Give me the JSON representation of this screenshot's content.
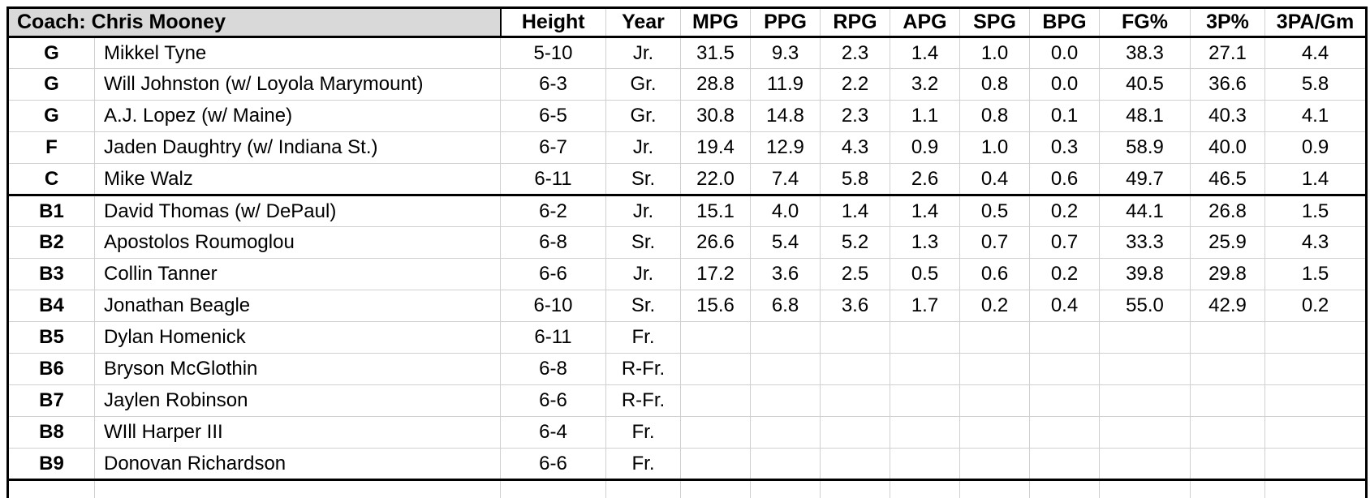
{
  "colors": {
    "header_bg": "#d9d9d9",
    "grid_line": "#d0d0d0",
    "border": "#000000",
    "text": "#000000",
    "page_bg": "#ffffff"
  },
  "chart_data": {
    "type": "table",
    "title": "Coach: Chris Mooney",
    "columns": [
      "Height",
      "Year",
      "MPG",
      "PPG",
      "RPG",
      "APG",
      "SPG",
      "BPG",
      "FG%",
      "3P%",
      "3PA/Gm"
    ],
    "rows": [
      {
        "pos": "G",
        "name": "Mikkel Tyne",
        "group": "starters",
        "cells": [
          "5-10",
          "Jr.",
          "31.5",
          "9.3",
          "2.3",
          "1.4",
          "1.0",
          "0.0",
          "38.3",
          "27.1",
          "4.4"
        ]
      },
      {
        "pos": "G",
        "name": "Will Johnston (w/ Loyola Marymount)",
        "group": "starters",
        "cells": [
          "6-3",
          "Gr.",
          "28.8",
          "11.9",
          "2.2",
          "3.2",
          "0.8",
          "0.0",
          "40.5",
          "36.6",
          "5.8"
        ]
      },
      {
        "pos": "G",
        "name": "A.J. Lopez (w/ Maine)",
        "group": "starters",
        "cells": [
          "6-5",
          "Gr.",
          "30.8",
          "14.8",
          "2.3",
          "1.1",
          "0.8",
          "0.1",
          "48.1",
          "40.3",
          "4.1"
        ]
      },
      {
        "pos": "F",
        "name": "Jaden Daughtry (w/ Indiana St.)",
        "group": "starters",
        "cells": [
          "6-7",
          "Jr.",
          "19.4",
          "12.9",
          "4.3",
          "0.9",
          "1.0",
          "0.3",
          "58.9",
          "40.0",
          "0.9"
        ]
      },
      {
        "pos": "C",
        "name": "Mike Walz",
        "group": "starters",
        "cells": [
          "6-11",
          "Sr.",
          "22.0",
          "7.4",
          "5.8",
          "2.6",
          "0.4",
          "0.6",
          "49.7",
          "46.5",
          "1.4"
        ]
      },
      {
        "pos": "B1",
        "name": "David Thomas (w/ DePaul)",
        "group": "bench",
        "cells": [
          "6-2",
          "Jr.",
          "15.1",
          "4.0",
          "1.4",
          "1.4",
          "0.5",
          "0.2",
          "44.1",
          "26.8",
          "1.5"
        ]
      },
      {
        "pos": "B2",
        "name": "Apostolos Roumoglou",
        "group": "bench",
        "cells": [
          "6-8",
          "Sr.",
          "26.6",
          "5.4",
          "5.2",
          "1.3",
          "0.7",
          "0.7",
          "33.3",
          "25.9",
          "4.3"
        ]
      },
      {
        "pos": "B3",
        "name": "Collin Tanner",
        "group": "bench",
        "cells": [
          "6-6",
          "Jr.",
          "17.2",
          "3.6",
          "2.5",
          "0.5",
          "0.6",
          "0.2",
          "39.8",
          "29.8",
          "1.5"
        ]
      },
      {
        "pos": "B4",
        "name": "Jonathan Beagle",
        "group": "bench",
        "cells": [
          "6-10",
          "Sr.",
          "15.6",
          "6.8",
          "3.6",
          "1.7",
          "0.2",
          "0.4",
          "55.0",
          "42.9",
          "0.2"
        ]
      },
      {
        "pos": "B5",
        "name": "Dylan Homenick",
        "group": "bench",
        "cells": [
          "6-11",
          "Fr.",
          "",
          "",
          "",
          "",
          "",
          "",
          "",
          "",
          ""
        ]
      },
      {
        "pos": "B6",
        "name": "Bryson McGlothin",
        "group": "bench",
        "cells": [
          "6-8",
          "R-Fr.",
          "",
          "",
          "",
          "",
          "",
          "",
          "",
          "",
          ""
        ]
      },
      {
        "pos": "B7",
        "name": "Jaylen Robinson",
        "group": "bench",
        "cells": [
          "6-6",
          "R-Fr.",
          "",
          "",
          "",
          "",
          "",
          "",
          "",
          "",
          ""
        ]
      },
      {
        "pos": "B8",
        "name": "WIll Harper III",
        "group": "bench",
        "cells": [
          "6-4",
          "Fr.",
          "",
          "",
          "",
          "",
          "",
          "",
          "",
          "",
          ""
        ]
      },
      {
        "pos": "B9",
        "name": "Donovan Richardson",
        "group": "bench",
        "cells": [
          "6-6",
          "Fr.",
          "",
          "",
          "",
          "",
          "",
          "",
          "",
          "",
          ""
        ]
      }
    ]
  }
}
